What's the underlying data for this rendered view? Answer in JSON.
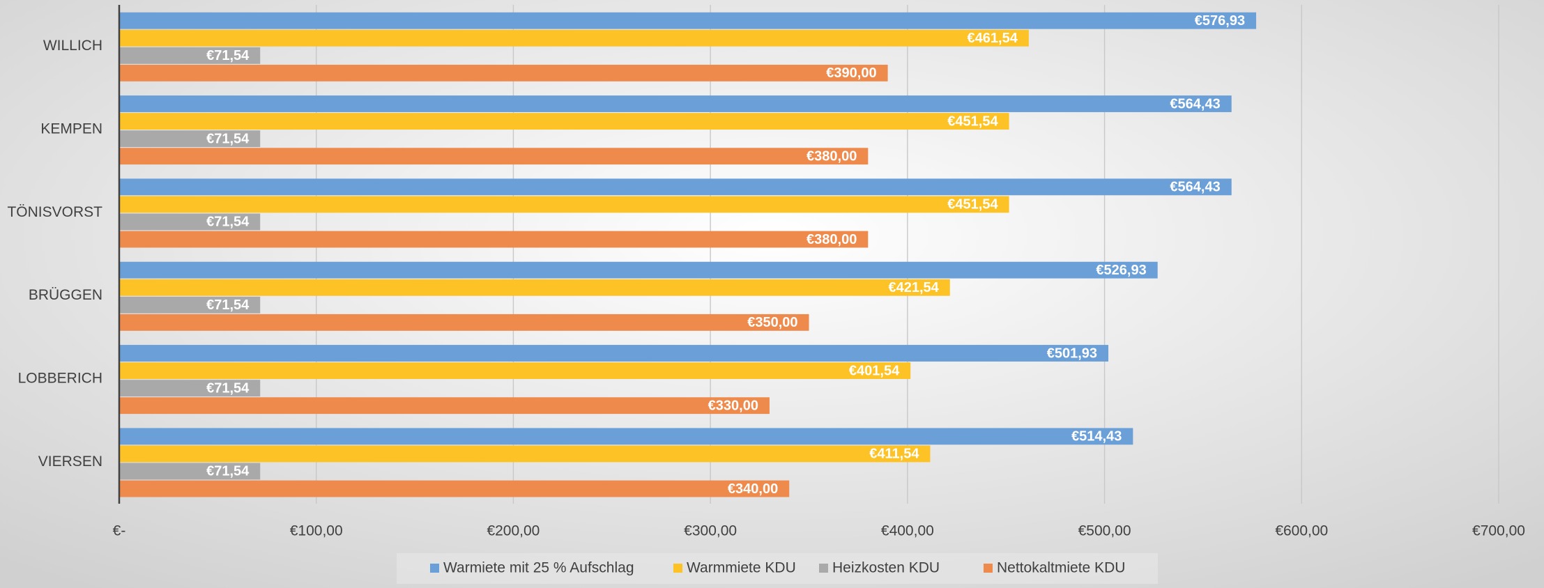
{
  "chart_data": {
    "type": "hbar",
    "categories": [
      "WILLICH",
      "KEMPEN",
      "TÖNISVORST",
      "BRÜGGEN",
      "LOBBERICH",
      "VIERSEN"
    ],
    "series": [
      {
        "name": "Warmiete mit 25 % Aufschlag",
        "color": "#6a9fd8",
        "values": [
          576.93,
          564.43,
          564.43,
          526.93,
          501.93,
          514.43
        ],
        "value_labels": [
          "€576,93",
          "€564,43",
          "€564,43",
          "€526,93",
          "€501,93",
          "€514,43"
        ]
      },
      {
        "name": "Warmmiete KDU",
        "color": "#fcc226",
        "values": [
          461.54,
          451.54,
          451.54,
          421.54,
          401.54,
          411.54
        ],
        "value_labels": [
          "€461,54",
          "€451,54",
          "€451,54",
          "€421,54",
          "€401,54",
          "€411,54"
        ]
      },
      {
        "name": "Heizkosten KDU",
        "color": "#a9a9a9",
        "values": [
          71.54,
          71.54,
          71.54,
          71.54,
          71.54,
          71.54
        ],
        "value_labels": [
          "€71,54",
          "€71,54",
          "€71,54",
          "€71,54",
          "€71,54",
          "€71,54"
        ]
      },
      {
        "name": "Nettokaltmiete KDU",
        "color": "#ee8a4c",
        "values": [
          390,
          380,
          380,
          350,
          330,
          340
        ],
        "value_labels": [
          "€390,00",
          "€380,00",
          "€380,00",
          "€350,00",
          "€330,00",
          "€340,00"
        ]
      }
    ],
    "xlim": [
      0,
      700
    ],
    "xticks": [
      {
        "value": 0,
        "label": "€-"
      },
      {
        "value": 100,
        "label": "€100,00"
      },
      {
        "value": 200,
        "label": "€200,00"
      },
      {
        "value": 300,
        "label": "€300,00"
      },
      {
        "value": 400,
        "label": "€400,00"
      },
      {
        "value": 500,
        "label": "€500,00"
      },
      {
        "value": 600,
        "label": "€600,00"
      },
      {
        "value": 700,
        "label": "€700,00"
      }
    ],
    "grid": true,
    "legend": "bottom"
  }
}
